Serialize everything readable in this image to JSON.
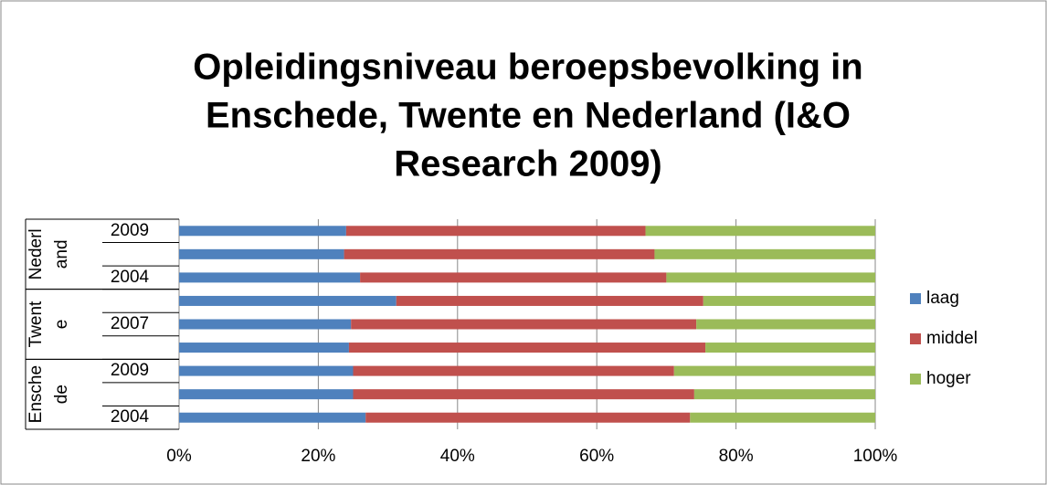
{
  "chart_data": {
    "type": "stacked-bar-horizontal",
    "title": [
      "Opleidingsniveau beroepsbevolking in",
      "Enschede, Twente en Nederland (I&O",
      "Research 2009)"
    ],
    "categories": [
      "2004",
      null,
      "2009",
      null,
      "2007",
      null,
      "2004",
      null,
      "2009"
    ],
    "groups": [
      {
        "label": [
          "Ensche",
          "de"
        ],
        "size": 3
      },
      {
        "label": [
          "Twent",
          "e"
        ],
        "size": 3
      },
      {
        "label": [
          "Nederl",
          "and"
        ],
        "size": 3
      }
    ],
    "series": [
      {
        "name": "laag",
        "color": "#4f81bd",
        "values": [
          26.8,
          25,
          25,
          24.4,
          24.7,
          31.2,
          26,
          23.7,
          24
        ]
      },
      {
        "name": "middel",
        "color": "#c0504d",
        "values": [
          46.6,
          49,
          46.1,
          51.2,
          49.6,
          44.1,
          44,
          44.6,
          43
        ]
      },
      {
        "name": "hoger",
        "color": "#9bbb59",
        "values": [
          26.6,
          26,
          28.9,
          24.4,
          25.7,
          24.7,
          30,
          31.7,
          33
        ]
      }
    ],
    "xlim": [
      0,
      100
    ],
    "xticks": [
      {
        "value": 0,
        "label": "0%"
      },
      {
        "value": 20,
        "label": "20%"
      },
      {
        "value": 40,
        "label": "40%"
      },
      {
        "value": 60,
        "label": "60%"
      },
      {
        "value": 80,
        "label": "80%"
      },
      {
        "value": 100,
        "label": "100%"
      }
    ],
    "grid": true,
    "legend": "right"
  }
}
